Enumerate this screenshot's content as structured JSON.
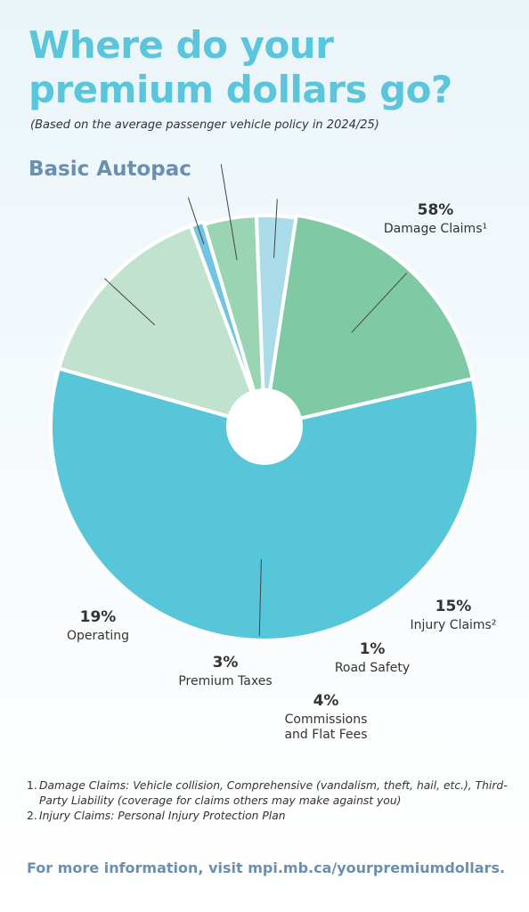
{
  "header": {
    "title_line1": "Where do your",
    "title_line2": "premium dollars go?",
    "subtitle": "(Based on the average passenger vehicle policy in 2024/25)",
    "section": "Basic Autopac"
  },
  "chart_data": {
    "type": "pie",
    "title": "Basic Autopac",
    "unit": "%",
    "slices": [
      {
        "name": "Damage Claims¹",
        "value": 58,
        "label": "58%",
        "color": "#58c6d9",
        "lines": [
          "Damage Claims¹"
        ]
      },
      {
        "name": "Injury Claims²",
        "value": 15,
        "label": "15%",
        "color": "#c1e2cf",
        "lines": [
          "Injury Claims²"
        ]
      },
      {
        "name": "Road Safety",
        "value": 1,
        "label": "1%",
        "color": "#72c5e0",
        "lines": [
          "Road Safety"
        ]
      },
      {
        "name": "Commissions and Flat Fees",
        "value": 4,
        "label": "4%",
        "color": "#99d4b3",
        "lines": [
          "Commissions",
          "and Flat Fees"
        ]
      },
      {
        "name": "Premium Taxes",
        "value": 3,
        "label": "3%",
        "color": "#a9dbe8",
        "lines": [
          "Premium Taxes"
        ]
      },
      {
        "name": "Operating",
        "value": 19,
        "label": "19%",
        "color": "#80c9a5",
        "lines": [
          "Operating"
        ]
      }
    ]
  },
  "footnotes": [
    {
      "num": "1.",
      "text": "Damage Claims: Vehicle collision, Comprehensive (vandalism, theft, hail, etc.), Third-Party Liability (coverage for claims others may make against you)"
    },
    {
      "num": "2.",
      "text": "Injury Claims: Personal Injury Protection Plan"
    }
  ],
  "footer": {
    "more_info": "For more information, visit mpi.mb.ca/yourpremiumdollars."
  }
}
